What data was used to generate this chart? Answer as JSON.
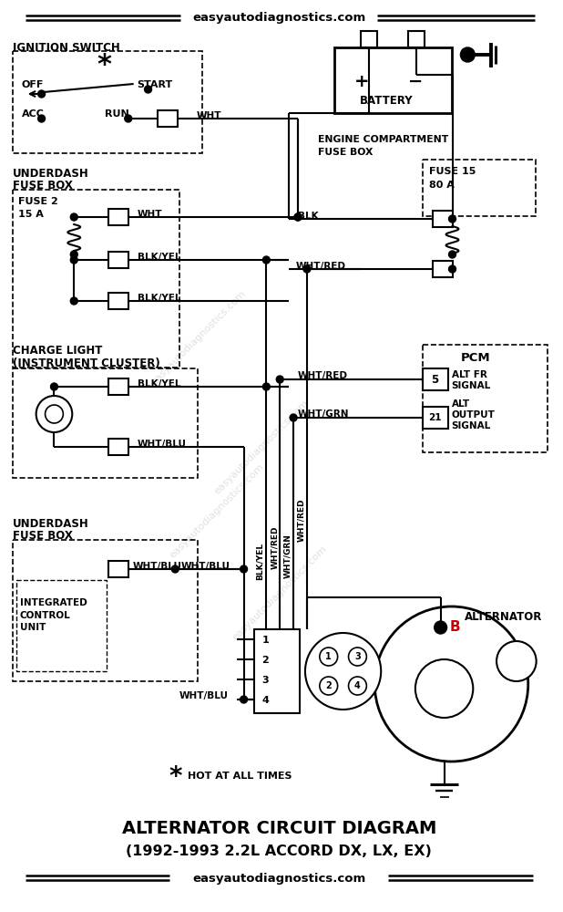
{
  "title_line1": "ALTERNATOR CIRCUIT DIAGRAM",
  "title_line2": "(1992-1993 2.2L ACCORD DX, LX, EX)",
  "website": "easyautodiagnostics.com",
  "bg_color": "#ffffff",
  "red_color": "#cc0000"
}
